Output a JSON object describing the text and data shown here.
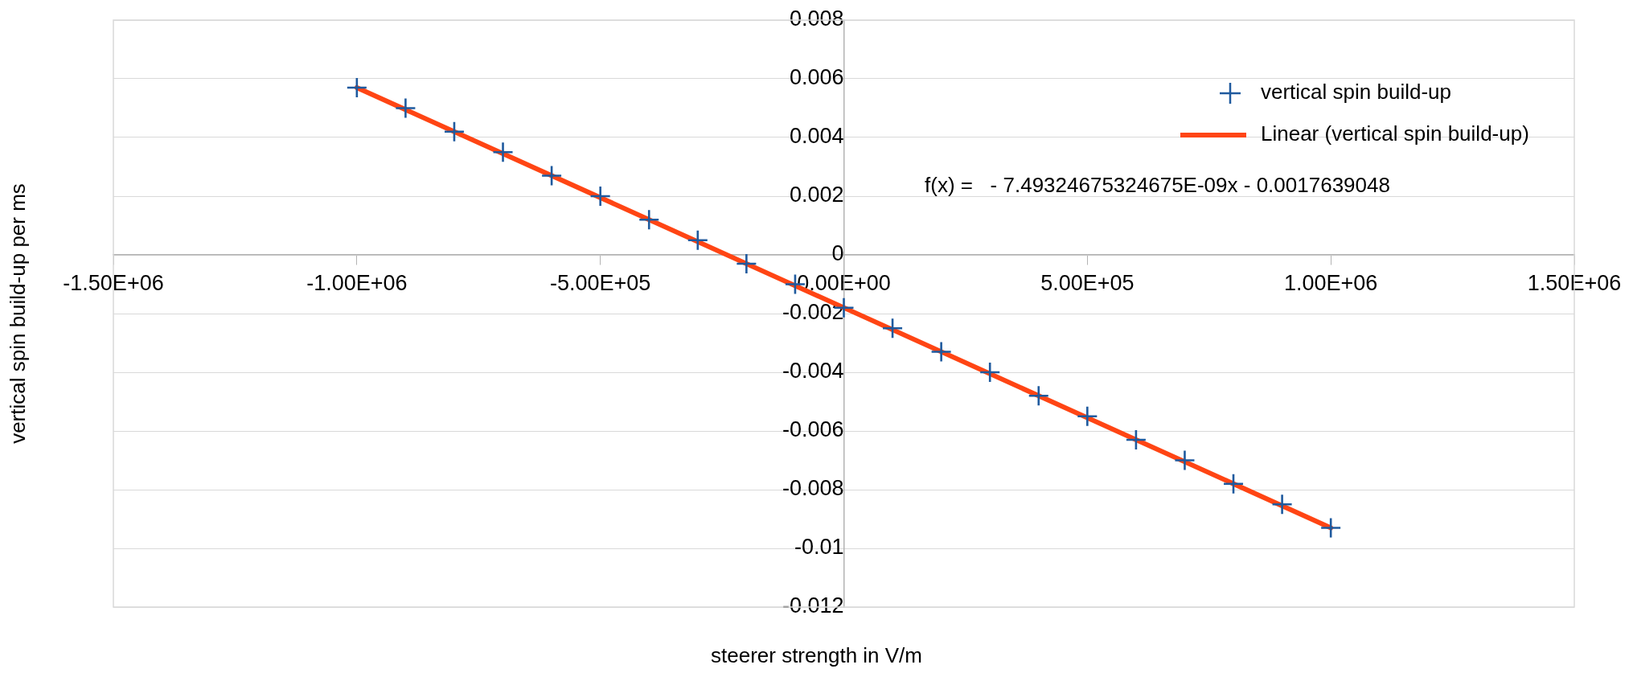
{
  "chart_data": {
    "type": "scatter",
    "xlabel": "steerer strength in V/m",
    "ylabel": "vertical spin build-up per ms",
    "x": [
      -1000000,
      -900000,
      -800000,
      -700000,
      -600000,
      -500000,
      -400000,
      -300000,
      -200000,
      -100000,
      0,
      100000,
      200000,
      300000,
      400000,
      500000,
      600000,
      700000,
      800000,
      900000,
      1000000
    ],
    "series": [
      {
        "name": "vertical spin build-up",
        "type": "scatter",
        "color": "#1f5a9e",
        "marker": "cross",
        "values": [
          0.0057,
          0.005,
          0.0042,
          0.0035,
          0.0027,
          0.002,
          0.0012,
          0.0005,
          -0.0003,
          -0.001,
          -0.0018,
          -0.0025,
          -0.0033,
          -0.004,
          -0.0048,
          -0.0055,
          -0.0063,
          -0.007,
          -0.0078,
          -0.0085,
          -0.0093
        ]
      },
      {
        "name": "Linear (vertical spin build-up)",
        "type": "line",
        "color": "#ff4514",
        "marker": "none",
        "x": [
          -1000000,
          1000000
        ],
        "values": [
          0.0057,
          -0.0093
        ]
      }
    ],
    "xlim": [
      -1500000,
      1500000
    ],
    "xticks": [
      {
        "value": -1500000,
        "label": "-1.50E+06"
      },
      {
        "value": -1000000,
        "label": "-1.00E+06"
      },
      {
        "value": -500000,
        "label": "-5.00E+05"
      },
      {
        "value": 0,
        "label": "0.00E+00"
      },
      {
        "value": 500000,
        "label": "5.00E+05"
      },
      {
        "value": 1000000,
        "label": "1.00E+06"
      },
      {
        "value": 1500000,
        "label": "1.50E+06"
      }
    ],
    "ylim": [
      -0.012,
      0.008
    ],
    "yticks": [
      -0.012,
      -0.01,
      -0.008,
      -0.006,
      -0.004,
      -0.002,
      0,
      0.002,
      0.004,
      0.006,
      0.008
    ],
    "grid": "y",
    "legend": "top right",
    "annotations": [
      "f(x) =   - 7.49324675324675E-09x - 0.0017639048"
    ]
  }
}
